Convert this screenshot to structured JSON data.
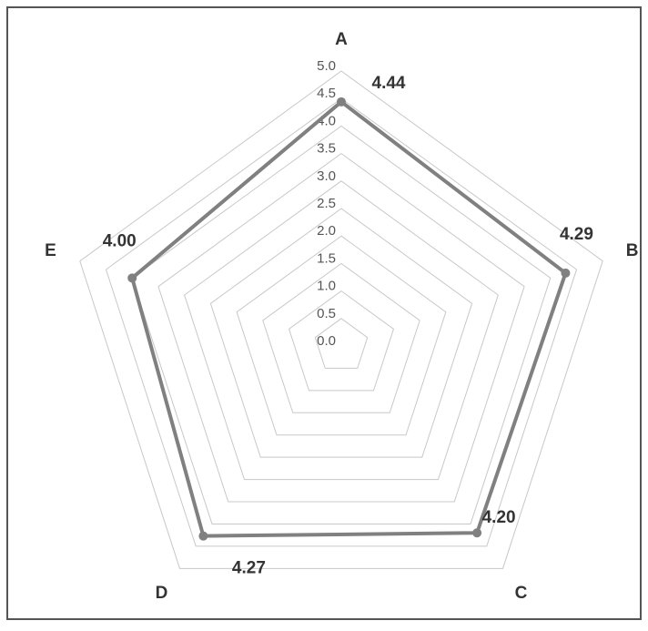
{
  "chart_data": {
    "type": "radar",
    "categories": [
      "A",
      "B",
      "C",
      "D",
      "E"
    ],
    "values": [
      4.44,
      4.29,
      4.2,
      4.27,
      4.0
    ],
    "value_labels": [
      "4.44",
      "4.29",
      "4.20",
      "4.27",
      "4.00"
    ],
    "color": "#808080",
    "ylim": [
      0,
      5
    ],
    "yticks": [
      {
        "value": 0,
        "label": "0.0"
      },
      {
        "value": 0.5,
        "label": "0.5"
      },
      {
        "value": 1,
        "label": "1.0"
      },
      {
        "value": 1.5,
        "label": "1.5"
      },
      {
        "value": 2,
        "label": "2.0"
      },
      {
        "value": 2.5,
        "label": "2.5"
      },
      {
        "value": 3,
        "label": "3.0"
      },
      {
        "value": 3.5,
        "label": "3.5"
      },
      {
        "value": 4,
        "label": "4.0"
      },
      {
        "value": 4.5,
        "label": "4.5"
      },
      {
        "value": 5,
        "label": "5.0"
      }
    ],
    "grid": true
  }
}
